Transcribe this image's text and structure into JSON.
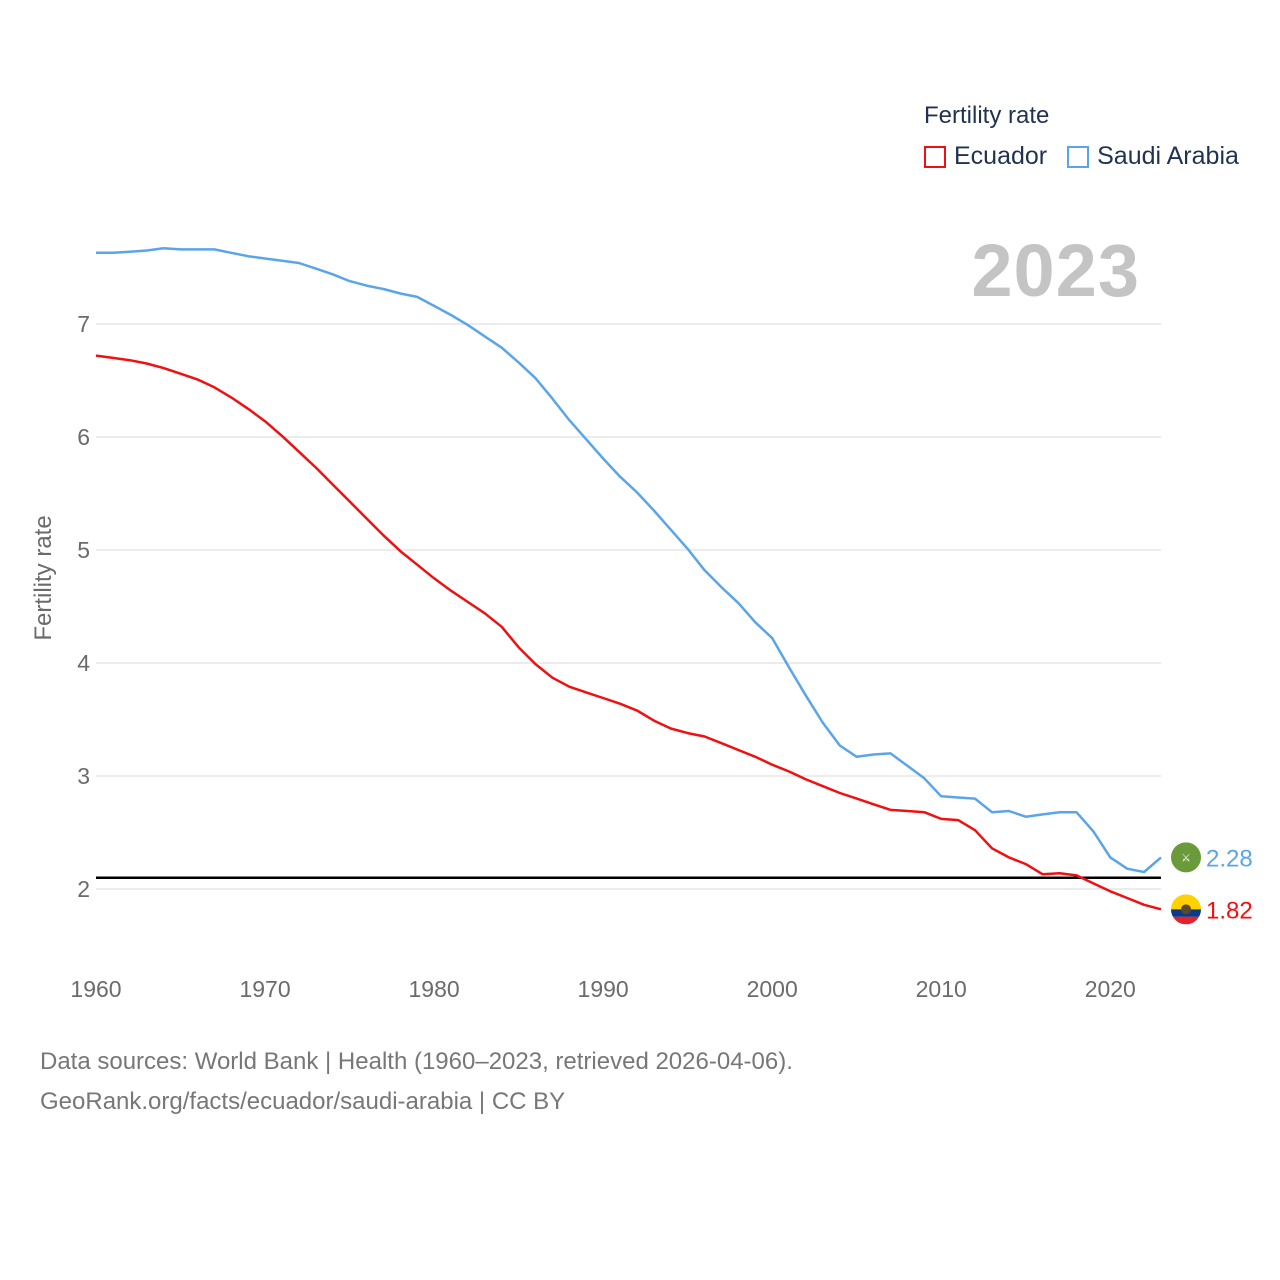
{
  "legend": {
    "title": "Fertility rate",
    "items": [
      {
        "label": "Ecuador",
        "color": "#ee1111"
      },
      {
        "label": "Saudi Arabia",
        "color": "#5aa5e8"
      }
    ]
  },
  "year_label": "2023",
  "footer": {
    "line1": "Data sources: World Bank | Health (1960–2023, retrieved 2026-04-06).",
    "line2": "GeoRank.org/facts/ecuador/saudi-arabia | CC BY"
  },
  "chart_data": {
    "type": "line",
    "title": "Fertility rate",
    "xlabel": "",
    "ylabel": "Fertility rate",
    "xlim": [
      1960,
      2023
    ],
    "ylim": [
      1.5,
      8.0
    ],
    "x_ticks": [
      1960,
      1970,
      1980,
      1990,
      2000,
      2010,
      2020
    ],
    "y_ticks": [
      2,
      3,
      4,
      5,
      6,
      7
    ],
    "grid": true,
    "reference_line": {
      "value": 2.1,
      "color": "#000000"
    },
    "x": [
      1960,
      1961,
      1962,
      1963,
      1964,
      1965,
      1966,
      1967,
      1968,
      1969,
      1970,
      1971,
      1972,
      1973,
      1974,
      1975,
      1976,
      1977,
      1978,
      1979,
      1980,
      1981,
      1982,
      1983,
      1984,
      1985,
      1986,
      1987,
      1988,
      1989,
      1990,
      1991,
      1992,
      1993,
      1994,
      1995,
      1996,
      1997,
      1998,
      1999,
      2000,
      2001,
      2002,
      2003,
      2004,
      2005,
      2006,
      2007,
      2008,
      2009,
      2010,
      2011,
      2012,
      2013,
      2014,
      2015,
      2016,
      2017,
      2018,
      2019,
      2020,
      2021,
      2022,
      2023
    ],
    "series": [
      {
        "name": "Ecuador",
        "color": "#ee1111",
        "end_label": "1.82",
        "values": [
          6.72,
          6.7,
          6.68,
          6.65,
          6.61,
          6.56,
          6.51,
          6.44,
          6.35,
          6.25,
          6.14,
          6.01,
          5.87,
          5.73,
          5.58,
          5.43,
          5.28,
          5.13,
          4.99,
          4.87,
          4.75,
          4.64,
          4.54,
          4.44,
          4.32,
          4.14,
          3.99,
          3.87,
          3.79,
          3.74,
          3.69,
          3.64,
          3.58,
          3.49,
          3.42,
          3.38,
          3.35,
          3.29,
          3.23,
          3.17,
          3.1,
          3.04,
          2.97,
          2.91,
          2.85,
          2.8,
          2.75,
          2.7,
          2.69,
          2.68,
          2.62,
          2.61,
          2.52,
          2.36,
          2.28,
          2.22,
          2.13,
          2.14,
          2.12,
          2.05,
          1.98,
          1.92,
          1.86,
          1.82
        ]
      },
      {
        "name": "Saudi Arabia",
        "color": "#5aa5e8",
        "end_label": "2.28",
        "values": [
          7.63,
          7.63,
          7.64,
          7.65,
          7.67,
          7.66,
          7.66,
          7.66,
          7.63,
          7.6,
          7.58,
          7.56,
          7.54,
          7.49,
          7.44,
          7.38,
          7.34,
          7.31,
          7.27,
          7.24,
          7.16,
          7.08,
          6.99,
          6.89,
          6.79,
          6.66,
          6.52,
          6.34,
          6.15,
          5.98,
          5.81,
          5.65,
          5.51,
          5.35,
          5.18,
          5.01,
          4.82,
          4.67,
          4.53,
          4.36,
          4.22,
          3.96,
          3.71,
          3.47,
          3.27,
          3.17,
          3.19,
          3.2,
          3.09,
          2.98,
          2.82,
          2.81,
          2.8,
          2.68,
          2.69,
          2.64,
          2.66,
          2.68,
          2.68,
          2.51,
          2.28,
          2.18,
          2.15,
          2.28
        ]
      }
    ]
  }
}
